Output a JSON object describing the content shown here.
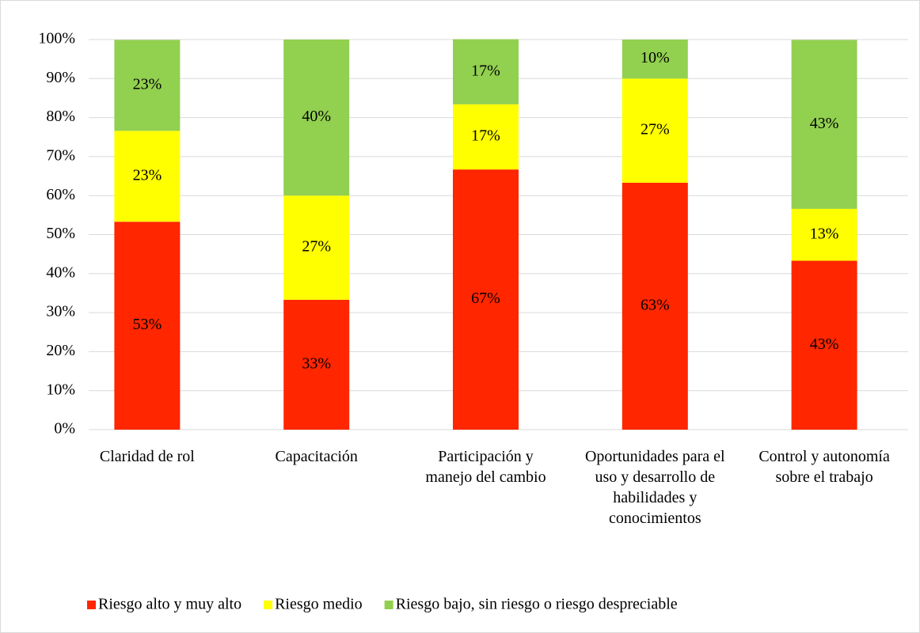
{
  "chart_data": {
    "type": "stacked_bar",
    "categories": [
      "Claridad de rol",
      "Capacitación",
      "Participación y manejo del cambio",
      "Oportunidades para el uso y desarrollo de habilidades y conocimientos",
      "Control y autonomía sobre el trabajo"
    ],
    "series": [
      {
        "name": "Riesgo alto y muy alto",
        "color": "#ff2600",
        "values": [
          53.3,
          33.3,
          66.7,
          63.3,
          43.3
        ],
        "value_labels": [
          "53%",
          "33%",
          "67%",
          "63%",
          "43%"
        ]
      },
      {
        "name": "Riesgo medio",
        "color": "#ffff00",
        "values": [
          23.3,
          26.7,
          16.7,
          26.7,
          13.3
        ],
        "value_labels": [
          "23%",
          "27%",
          "17%",
          "27%",
          "13%"
        ]
      },
      {
        "name": "Riesgo bajo, sin riesgo o riesgo despreciable",
        "color": "#92d050",
        "values": [
          23.3,
          40,
          16.7,
          10,
          43.3
        ],
        "value_labels": [
          "23%",
          "40%",
          "17%",
          "10%",
          "43%"
        ]
      }
    ],
    "ylim": [
      0,
      100
    ],
    "yticks": [
      {
        "value": 0,
        "label": "0%"
      },
      {
        "value": 10,
        "label": "10%"
      },
      {
        "value": 20,
        "label": "20%"
      },
      {
        "value": 30,
        "label": "30%"
      },
      {
        "value": 40,
        "label": "40%"
      },
      {
        "value": 50,
        "label": "50%"
      },
      {
        "value": 60,
        "label": "60%"
      },
      {
        "value": 70,
        "label": "70%"
      },
      {
        "value": 80,
        "label": "80%"
      },
      {
        "value": 90,
        "label": "90%"
      },
      {
        "value": 100,
        "label": "100%"
      }
    ],
    "grid": true,
    "legend": "bottom"
  }
}
